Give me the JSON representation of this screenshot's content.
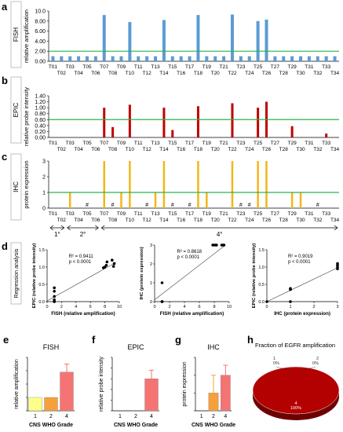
{
  "panels": {
    "a": {
      "letter": "a",
      "side": "FISH",
      "ylabel": "relative amplification"
    },
    "b": {
      "letter": "b",
      "side": "EPIC",
      "ylabel": "relative probe intensity"
    },
    "c": {
      "letter": "c",
      "side": "IHC",
      "ylabel": "protein expression"
    },
    "d": {
      "letter": "d",
      "side": "Regression analysis"
    },
    "e": {
      "letter": "e"
    },
    "f": {
      "letter": "f"
    },
    "g": {
      "letter": "g"
    },
    "h": {
      "letter": "h"
    }
  },
  "tumor_ids": [
    "T01",
    "T02",
    "T03",
    "T04",
    "T05",
    "T06",
    "T07",
    "T08",
    "T09",
    "T10",
    "T11",
    "T12",
    "T13",
    "T14",
    "T15",
    "T16",
    "T17",
    "T18",
    "T19",
    "T20",
    "T21",
    "T22",
    "T23",
    "T24",
    "T25",
    "T26",
    "T27",
    "T28",
    "T29",
    "T30",
    "T31",
    "T32",
    "T33",
    "T34"
  ],
  "grade_groups": [
    {
      "label": "1°",
      "from": 1,
      "to": 2
    },
    {
      "label": "2°",
      "from": 3,
      "to": 6
    },
    {
      "label": "4°",
      "from": 7,
      "to": 34
    }
  ],
  "colors": {
    "fish": "#5B9BD5",
    "epic": "#C00000",
    "ihc": "#F2B619",
    "threshold": "#2DB24A",
    "grade1": "#FFFF8A",
    "grade2": "#F5A03C",
    "grade4": "#F47474",
    "pie": "#B30000",
    "pie_dark": "#6E0000"
  },
  "chart_data": [
    {
      "id": "fish",
      "type": "bar",
      "title": "",
      "xlabel": "",
      "ylabel": "relative amplification",
      "categories": [
        "T01",
        "T02",
        "T03",
        "T04",
        "T05",
        "T06",
        "T07",
        "T08",
        "T09",
        "T10",
        "T11",
        "T12",
        "T13",
        "T14",
        "T15",
        "T16",
        "T17",
        "T18",
        "T19",
        "T20",
        "T21",
        "T22",
        "T23",
        "T24",
        "T25",
        "T26",
        "T27",
        "T28",
        "T29",
        "T30",
        "T31",
        "T32",
        "T33",
        "T34"
      ],
      "values": [
        1,
        1,
        1,
        1,
        1,
        1,
        9.2,
        1,
        1,
        7.8,
        1,
        1,
        1,
        8.2,
        1,
        1,
        1,
        9.2,
        1,
        1,
        1,
        9.3,
        1,
        1,
        8.0,
        8.3,
        1,
        1,
        1,
        1,
        1,
        1,
        1,
        1
      ],
      "ylim": [
        0,
        10
      ],
      "yticks": [
        "0.00",
        "2.00",
        "4.00",
        "6.00",
        "8.00",
        "10.0"
      ],
      "threshold": 2
    },
    {
      "id": "epic",
      "type": "bar",
      "title": "",
      "xlabel": "",
      "ylabel": "relative probe intensity",
      "categories": [
        "T01",
        "T02",
        "T03",
        "T04",
        "T05",
        "T06",
        "T07",
        "T08",
        "T09",
        "T10",
        "T11",
        "T12",
        "T13",
        "T14",
        "T15",
        "T16",
        "T17",
        "T18",
        "T19",
        "T20",
        "T21",
        "T22",
        "T23",
        "T24",
        "T25",
        "T26",
        "T27",
        "T28",
        "T29",
        "T30",
        "T31",
        "T32",
        "T33",
        "T34"
      ],
      "values": [
        0,
        0,
        0,
        0,
        0,
        0,
        1.0,
        0.35,
        0,
        1.1,
        0,
        0,
        0,
        1.0,
        0.25,
        0,
        0,
        1.05,
        0,
        0,
        0,
        1.15,
        0,
        0,
        1.0,
        1.2,
        0,
        0,
        0.38,
        0,
        0,
        0,
        0.13,
        0
      ],
      "ylim": [
        0,
        1.4
      ],
      "yticks": [
        "0.00",
        "0.20",
        "0.40",
        "0.60",
        "0.80",
        "1.00",
        "1.20",
        "1.40"
      ],
      "threshold": 0.6
    },
    {
      "id": "ihc",
      "type": "bar",
      "title": "",
      "xlabel": "",
      "ylabel": "protein expression",
      "categories": [
        "T01",
        "T02",
        "T03",
        "T04",
        "T05",
        "T06",
        "T07",
        "T08",
        "T09",
        "T10",
        "T11",
        "T12",
        "T13",
        "T14",
        "T15",
        "T16",
        "T17",
        "T18",
        "T19",
        "T20",
        "T21",
        "T22",
        "T23",
        "T24",
        "T25",
        "T26",
        "T27",
        "T28",
        "T29",
        "T30",
        "T31",
        "T32",
        "T33",
        "T34"
      ],
      "values": [
        0,
        0,
        1,
        0,
        0,
        0,
        3,
        0,
        1,
        3,
        0,
        0,
        1,
        3,
        0,
        0,
        0,
        3,
        1,
        0,
        0,
        3,
        0,
        0,
        3,
        3,
        0,
        0,
        1,
        1,
        0,
        0,
        0,
        0
      ],
      "not_available": [
        "T05",
        "T08",
        "T12",
        "T15",
        "T17",
        "T23",
        "T24",
        "T32"
      ],
      "not_available_mark": "#",
      "ylim": [
        0,
        3
      ],
      "yticks": [
        "0",
        "1",
        "2",
        "3"
      ],
      "threshold": 1
    },
    {
      "id": "reg1",
      "type": "scatter",
      "xlabel": "FISH (relative amplification)",
      "ylabel": "EPIC (relative probe intensity)",
      "annotation": [
        "R² = 0.9411",
        "p < 0.0001"
      ],
      "xlim": [
        0,
        10
      ],
      "ylim": [
        0,
        1.5
      ],
      "xticks": [
        "0",
        "2",
        "4",
        "6",
        "8",
        "10"
      ],
      "yticks": [
        "0.0",
        "0.5",
        "1.0",
        "1.5"
      ],
      "points": [
        [
          1,
          0.3
        ],
        [
          1,
          0.4
        ],
        [
          1,
          0.15
        ],
        [
          1,
          0
        ],
        [
          1,
          0
        ],
        [
          8,
          1.0
        ],
        [
          8.2,
          1.05
        ],
        [
          9,
          1.2
        ],
        [
          9.3,
          1.1
        ],
        [
          7.8,
          0.98
        ],
        [
          8.3,
          1.15
        ],
        [
          9.2,
          1.02
        ],
        [
          1,
          0.05
        ]
      ],
      "fit": [
        [
          0,
          0.02
        ],
        [
          9.5,
          1.13
        ]
      ]
    },
    {
      "id": "reg2",
      "type": "scatter",
      "xlabel": "FISH (relative amplification)",
      "ylabel": "IHC (protein expression)",
      "annotation": [
        "R² = 0.8618",
        "p < 0.0001"
      ],
      "xlim": [
        0,
        10
      ],
      "ylim": [
        0,
        3
      ],
      "xticks": [
        "0",
        "2",
        "4",
        "6",
        "8",
        "10"
      ],
      "yticks": [
        "0",
        "1",
        "2",
        "3"
      ],
      "points": [
        [
          1,
          1
        ],
        [
          1,
          0
        ],
        [
          1,
          0
        ],
        [
          1,
          0
        ],
        [
          8,
          3
        ],
        [
          8.2,
          3
        ],
        [
          9,
          3
        ],
        [
          9.3,
          3
        ],
        [
          7.8,
          3
        ],
        [
          8.3,
          3
        ],
        [
          9.2,
          3
        ]
      ],
      "fit": [
        [
          0,
          0.1
        ],
        [
          9.5,
          3.0
        ]
      ]
    },
    {
      "id": "reg3",
      "type": "scatter",
      "xlabel": "IHC (protein expression)",
      "ylabel": "EPIC (relative probe intensity)",
      "annotation": [
        "R² = 0.9019",
        "p < 0.0001"
      ],
      "xlim": [
        0,
        3
      ],
      "ylim": [
        0,
        1.5
      ],
      "xticks": [
        "0",
        "1",
        "2",
        "3"
      ],
      "yticks": [
        "0.0",
        "0.5",
        "1.0",
        "1.5"
      ],
      "points": [
        [
          0,
          0
        ],
        [
          1,
          0
        ],
        [
          1,
          0.35
        ],
        [
          1,
          0.38
        ],
        [
          3,
          1.0
        ],
        [
          3,
          1.05
        ],
        [
          3,
          1.1
        ],
        [
          3,
          0.95
        ]
      ],
      "fit": [
        [
          0,
          0
        ],
        [
          3,
          0.98
        ]
      ]
    },
    {
      "id": "fish_grade",
      "type": "bar",
      "title": "FISH",
      "xlabel": "CNS WHO Grade",
      "ylabel": "relative amplification",
      "categories": [
        "1",
        "2",
        "4"
      ],
      "values": [
        1.0,
        1.0,
        2.9
      ],
      "errors": [
        0,
        0,
        0.6
      ],
      "ylim": [
        0,
        4
      ],
      "yticks": [
        "0",
        "1",
        "2",
        "3",
        "4"
      ]
    },
    {
      "id": "epic_grade",
      "type": "bar",
      "title": "EPIC",
      "xlabel": "CNS WHO Grade",
      "ylabel": "relative probe intensity",
      "categories": [
        "1",
        "2",
        "4"
      ],
      "values": [
        0,
        0,
        0.3
      ],
      "errors": [
        0,
        0,
        0.08
      ],
      "ylim": [
        0,
        0.5
      ],
      "yticks": [
        "0.0",
        "0.1",
        "0.2",
        "0.3",
        "0.4",
        "0.5"
      ]
    },
    {
      "id": "ihc_grade",
      "type": "bar",
      "title": "IHC",
      "xlabel": "CNS WHO Grade",
      "ylabel": "protein expression",
      "categories": [
        "1",
        "2",
        "4"
      ],
      "values": [
        0,
        0.5,
        1.0
      ],
      "errors": [
        0,
        0.5,
        0.28
      ],
      "ylim": [
        0,
        1.5
      ],
      "yticks": [
        "0.0",
        "0.5",
        "1.0",
        "1.5"
      ]
    },
    {
      "id": "pie",
      "type": "pie",
      "title": "Fraction of EGFR amplification",
      "slices": [
        {
          "label": "1",
          "pct": "0%",
          "value": 0
        },
        {
          "label": "2",
          "pct": "0%",
          "value": 0
        },
        {
          "label": "4",
          "pct": "100%",
          "value": 100
        }
      ]
    }
  ]
}
